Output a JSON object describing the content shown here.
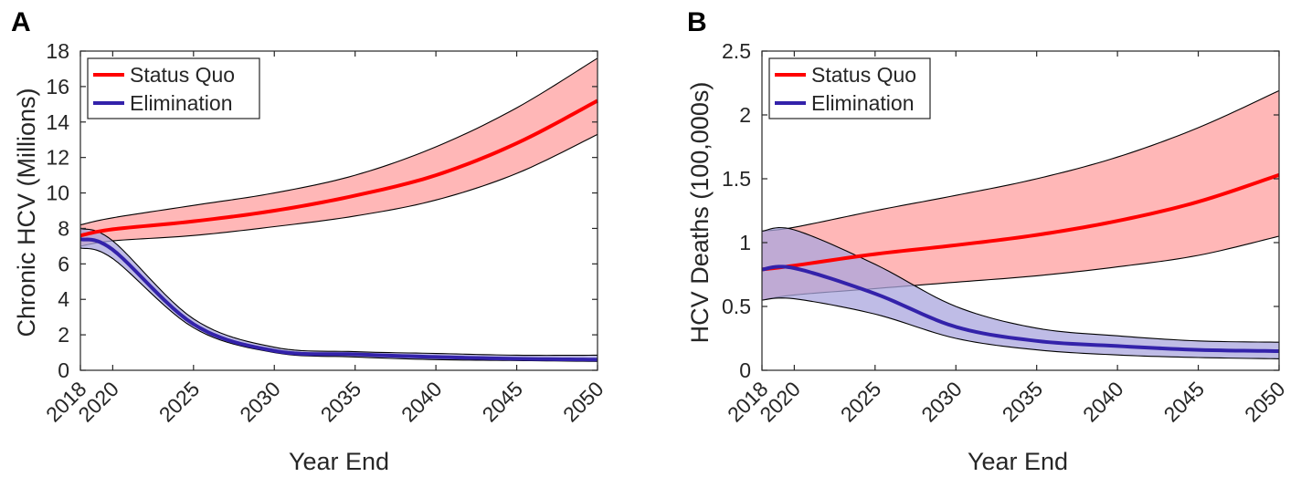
{
  "panels": [
    {
      "letter": "A",
      "ylabel": "Chronic HCV (Millions)",
      "xlabel": "Year End",
      "legend": [
        "Status Quo",
        "Elimination"
      ]
    },
    {
      "letter": "B",
      "ylabel": "HCV Deaths (100,000s)",
      "xlabel": "Year End",
      "legend": [
        "Status Quo",
        "Elimination"
      ]
    }
  ],
  "colors": {
    "status_quo_line": "#ff0000",
    "status_quo_band": "#ffb3b3",
    "elimination_line": "#3322aa",
    "elimination_band": "#aaa6dd",
    "band_edge": "#000000"
  },
  "chart_data": [
    {
      "type": "line",
      "title": "",
      "xlabel": "Year End",
      "ylabel": "Chronic HCV (Millions)",
      "xlim": [
        2018,
        2050
      ],
      "ylim": [
        0,
        18
      ],
      "xticks": [
        "2018",
        "2020",
        "2025",
        "2030",
        "2035",
        "2040",
        "2045",
        "2050"
      ],
      "yticks": [
        "0",
        "2",
        "4",
        "6",
        "8",
        "10",
        "12",
        "14",
        "16",
        "18"
      ],
      "grid": false,
      "legend_position": "top-left",
      "x": [
        2018,
        2020,
        2025,
        2030,
        2035,
        2040,
        2045,
        2050
      ],
      "series": [
        {
          "name": "Status Quo",
          "values": [
            7.6,
            7.95,
            8.4,
            9.0,
            9.85,
            11.0,
            12.8,
            15.2
          ],
          "lower": [
            7.0,
            7.3,
            7.6,
            8.1,
            8.7,
            9.6,
            11.1,
            13.3
          ],
          "upper": [
            8.2,
            8.6,
            9.3,
            10.0,
            11.0,
            12.6,
            14.8,
            17.6
          ]
        },
        {
          "name": "Elimination",
          "values": [
            7.4,
            6.8,
            2.6,
            1.1,
            0.9,
            0.75,
            0.65,
            0.6
          ],
          "lower": [
            6.9,
            6.3,
            2.4,
            1.0,
            0.75,
            0.6,
            0.55,
            0.5
          ],
          "upper": [
            8.0,
            7.3,
            2.9,
            1.3,
            1.05,
            0.95,
            0.85,
            0.85
          ]
        }
      ]
    },
    {
      "type": "line",
      "title": "",
      "xlabel": "Year End",
      "ylabel": "HCV Deaths (100,000s)",
      "xlim": [
        2018,
        2050
      ],
      "ylim": [
        0,
        2.5
      ],
      "xticks": [
        "2018",
        "2020",
        "2025",
        "2030",
        "2035",
        "2040",
        "2045",
        "2050"
      ],
      "yticks": [
        "0",
        "0.5",
        "1",
        "1.5",
        "2",
        "2.5"
      ],
      "grid": false,
      "legend_position": "top-left",
      "x": [
        2018,
        2020,
        2025,
        2030,
        2035,
        2040,
        2045,
        2050
      ],
      "series": [
        {
          "name": "Status Quo",
          "values": [
            0.79,
            0.82,
            0.91,
            0.98,
            1.06,
            1.17,
            1.32,
            1.53
          ],
          "lower": [
            0.55,
            0.59,
            0.64,
            0.69,
            0.74,
            0.81,
            0.9,
            1.05
          ],
          "upper": [
            1.09,
            1.12,
            1.25,
            1.37,
            1.5,
            1.67,
            1.9,
            2.19
          ]
        },
        {
          "name": "Elimination",
          "values": [
            0.79,
            0.8,
            0.6,
            0.34,
            0.23,
            0.19,
            0.16,
            0.15
          ],
          "lower": [
            0.55,
            0.56,
            0.44,
            0.25,
            0.16,
            0.12,
            0.1,
            0.09
          ],
          "upper": [
            1.09,
            1.1,
            0.83,
            0.5,
            0.33,
            0.27,
            0.23,
            0.22
          ]
        }
      ]
    }
  ]
}
